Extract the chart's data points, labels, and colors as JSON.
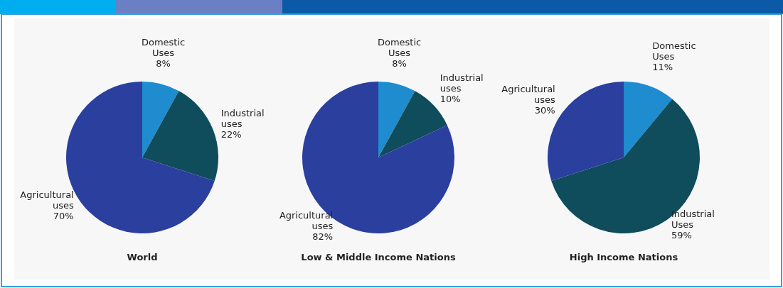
{
  "chart_data": [
    {
      "type": "pie",
      "title": "World",
      "categories": [
        "Domestic Uses",
        "Industrial uses",
        "Agricultural uses"
      ],
      "values": [
        8,
        22,
        70
      ],
      "value_labels": [
        "8%",
        "22%",
        "70%"
      ],
      "colors": [
        "#1e8ccf",
        "#0f4c5c",
        "#2b3f9e"
      ]
    },
    {
      "type": "pie",
      "title": "Low & Middle Income Nations",
      "categories": [
        "Domestic Uses",
        "Industrial uses",
        "Agricultural uses"
      ],
      "values": [
        8,
        10,
        82
      ],
      "value_labels": [
        "8%",
        "10%",
        "82%"
      ],
      "colors": [
        "#1e8ccf",
        "#0f4c5c",
        "#2b3f9e"
      ]
    },
    {
      "type": "pie",
      "title": "High Income Nations",
      "categories": [
        "Domestic Uses",
        "Industrial Uses",
        "Agricultural uses"
      ],
      "values": [
        11,
        59,
        30
      ],
      "value_labels": [
        "11%",
        "59%",
        "30%"
      ],
      "colors": [
        "#1e8ccf",
        "#0f4c5c",
        "#2b3f9e"
      ]
    }
  ]
}
